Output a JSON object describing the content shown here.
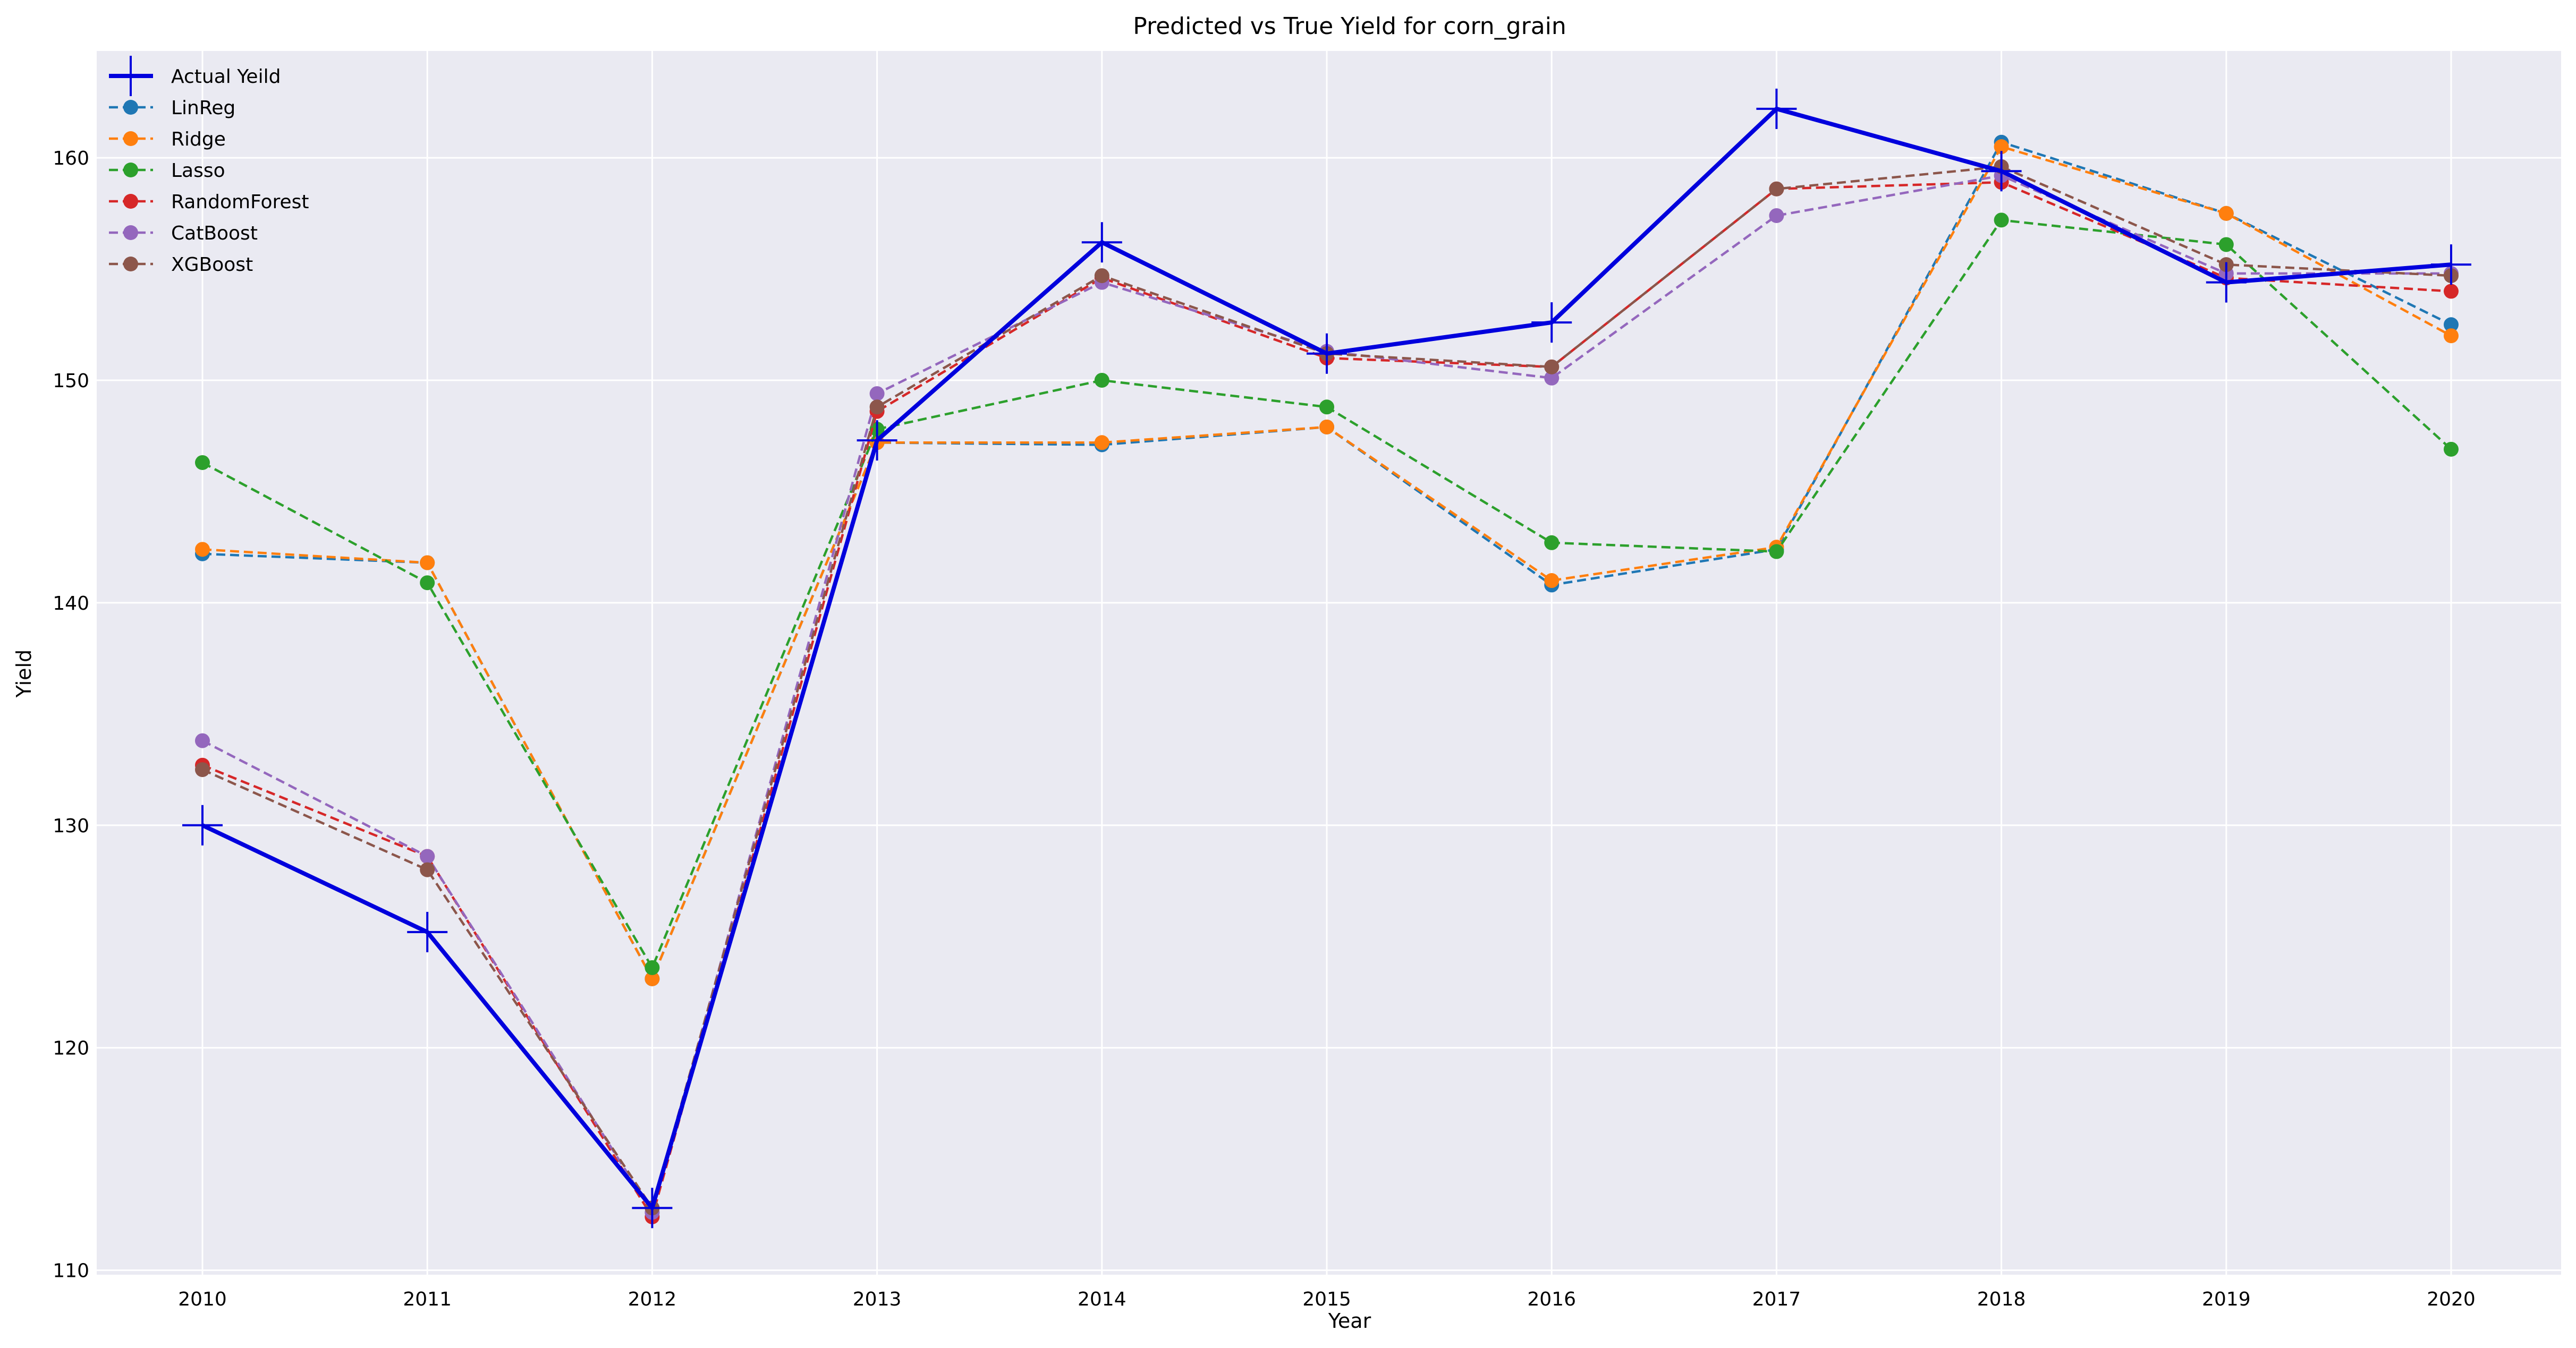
{
  "chart_data": {
    "type": "line",
    "title": "Predicted vs True Yield for corn_grain",
    "xlabel": "Year",
    "ylabel": "Yield",
    "x": [
      "2010",
      "2011",
      "2012",
      "2013",
      "2014",
      "2015",
      "2016",
      "2017",
      "2018",
      "2019",
      "2020"
    ],
    "ylim": [
      109.8,
      164.8
    ],
    "yticks": [
      "110",
      "120",
      "130",
      "140",
      "150",
      "160"
    ],
    "grid": true,
    "legend_position": "top-left",
    "series": [
      {
        "name": "Actual Yeild",
        "color": "#0000dd",
        "style": "solid",
        "marker": "plus",
        "values": [
          130.0,
          125.2,
          112.8,
          147.3,
          156.2,
          151.2,
          152.6,
          162.2,
          159.4,
          154.4,
          155.2
        ]
      },
      {
        "name": "LinReg",
        "color": "#1f77b4",
        "style": "dashed",
        "marker": "circle",
        "values": [
          142.2,
          141.8,
          123.1,
          147.2,
          147.1,
          147.9,
          140.8,
          142.4,
          160.7,
          157.5,
          152.5
        ]
      },
      {
        "name": "Ridge",
        "color": "#ff7f0e",
        "style": "dashed",
        "marker": "circle",
        "values": [
          142.4,
          141.8,
          123.1,
          147.2,
          147.2,
          147.9,
          141.0,
          142.5,
          160.5,
          157.5,
          152.0
        ]
      },
      {
        "name": "Lasso",
        "color": "#2ca02c",
        "style": "dashed",
        "marker": "circle",
        "values": [
          146.3,
          140.9,
          123.6,
          147.8,
          150.0,
          148.8,
          142.7,
          142.3,
          157.2,
          156.1,
          146.9
        ]
      },
      {
        "name": "RandomForest",
        "color": "#d62728",
        "style": "dashed",
        "marker": "circle",
        "values": [
          132.7,
          128.6,
          112.4,
          148.6,
          154.6,
          151.0,
          150.6,
          158.6,
          158.9,
          154.6,
          154.0
        ]
      },
      {
        "name": "CatBoost",
        "color": "#9467bd",
        "style": "dashed",
        "marker": "circle",
        "values": [
          133.8,
          128.6,
          112.6,
          149.4,
          154.4,
          151.3,
          150.1,
          157.4,
          159.2,
          154.8,
          154.8
        ]
      },
      {
        "name": "XGBoost",
        "color": "#8c564b",
        "style": "dashed",
        "marker": "circle",
        "values": [
          132.5,
          128.0,
          112.8,
          148.8,
          154.7,
          151.2,
          150.6,
          158.6,
          159.6,
          155.2,
          154.7
        ]
      }
    ]
  }
}
